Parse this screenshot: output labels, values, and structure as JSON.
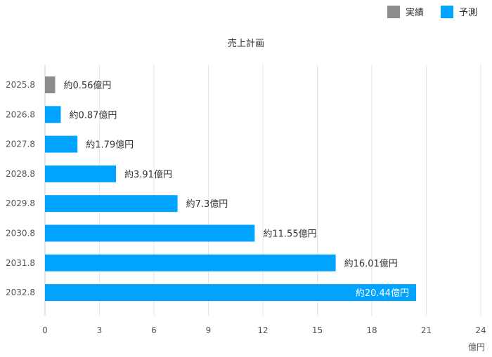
{
  "chart_data": {
    "type": "bar",
    "orientation": "horizontal",
    "title": "売上計画",
    "xlabel": "億円",
    "ylabel": "",
    "xlim": [
      0,
      24
    ],
    "xticks": [
      0,
      3,
      6,
      9,
      12,
      15,
      18,
      21,
      24
    ],
    "grid": true,
    "legend_position": "top-right",
    "legend": [
      {
        "name": "実績",
        "color": "#8c8c8c"
      },
      {
        "name": "予測",
        "color": "#00a3ff"
      }
    ],
    "categories": [
      "2025.8",
      "2026.8",
      "2027.8",
      "2028.8",
      "2029.8",
      "2030.8",
      "2031.8",
      "2032.8"
    ],
    "values": [
      0.56,
      0.87,
      1.79,
      3.91,
      7.3,
      11.55,
      16.01,
      20.44
    ],
    "series_of_bar": [
      "実績",
      "予測",
      "予測",
      "予測",
      "予測",
      "予測",
      "予測",
      "予測"
    ],
    "data_labels": [
      "約0.56億円",
      "約0.87億円",
      "約1.79億円",
      "約3.91億円",
      "約7.3億円",
      "約11.55億円",
      "約16.01億円",
      "約20.44億円"
    ]
  }
}
